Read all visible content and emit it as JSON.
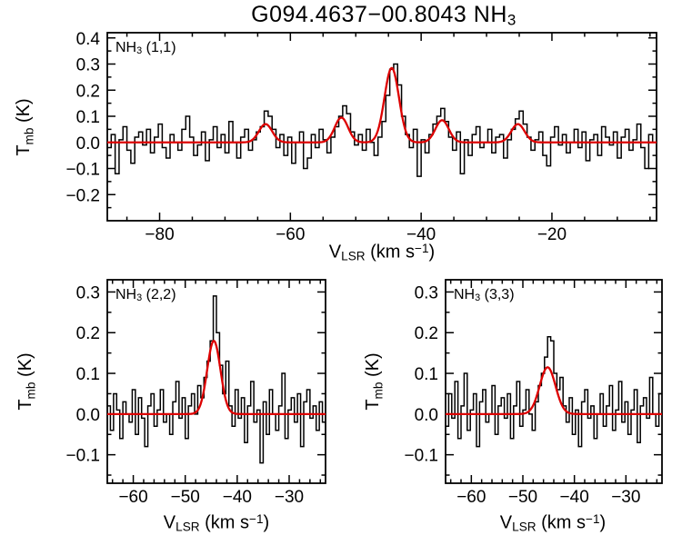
{
  "title": {
    "text": "G094.4637−00.8043 NH",
    "sub": "3"
  },
  "colors": {
    "spectrum": "#000000",
    "fit": "#dd0000",
    "axis": "#000000",
    "background": "#ffffff"
  },
  "labels": {
    "y": {
      "main": "T",
      "sub": "mb",
      "unit": " (K)"
    },
    "x": {
      "main": "V",
      "sub": "LSR",
      "unit_pre": " (km s",
      "sup": "−1",
      "unit_post": ")"
    }
  },
  "chart_data": [
    {
      "type": "line",
      "panel": "top",
      "label": "NH3 (1,1)",
      "label_parts": {
        "main": "NH",
        "sub": "3",
        "rest": " (1,1)"
      },
      "xlabel": "V_LSR (km s^-1)",
      "ylabel": "T_mb (K)",
      "xlim": [
        -88,
        -4
      ],
      "ylim": [
        -0.3,
        0.42
      ],
      "xticks": [
        -80,
        -60,
        -40,
        -20
      ],
      "yticks": [
        0.4,
        0.3,
        0.2,
        0.1,
        0.0,
        -0.1,
        -0.2
      ],
      "x_start": -88,
      "dx": 0.6,
      "spectrum": [
        -0.02,
        0.03,
        -0.12,
        0.01,
        0.06,
        -0.03,
        -0.08,
        0.02,
        0.04,
        -0.01,
        0.05,
        -0.04,
        0.02,
        0.07,
        -0.02,
        -0.06,
        0.03,
        0.0,
        -0.03,
        0.05,
        0.1,
        0.02,
        -0.05,
        -0.01,
        0.04,
        -0.07,
        0.01,
        0.06,
        -0.02,
        0.03,
        -0.04,
        0.08,
        0.0,
        -0.06,
        0.02,
        0.05,
        -0.03,
        0.01,
        0.04,
        0.06,
        0.12,
        0.1,
        0.05,
        -0.02,
        0.03,
        -0.05,
        0.02,
        -0.08,
        0.0,
        0.04,
        -0.1,
        -0.06,
        0.03,
        -0.02,
        0.05,
        0.01,
        -0.04,
        0.02,
        0.06,
        0.1,
        0.14,
        0.11,
        0.04,
        -0.01,
        0.03,
        -0.03,
        0.05,
        0.0,
        -0.05,
        0.02,
        0.08,
        0.18,
        0.28,
        0.3,
        0.22,
        0.1,
        0.03,
        -0.02,
        0.05,
        -0.13,
        0.01,
        -0.04,
        0.03,
        0.07,
        0.1,
        0.13,
        0.08,
        0.02,
        -0.03,
        0.04,
        -0.12,
        0.01,
        -0.05,
        0.03,
        0.06,
        -0.02,
        0.0,
        0.05,
        -0.04,
        0.02,
        0.03,
        -0.06,
        0.01,
        0.05,
        0.09,
        0.12,
        0.07,
        0.02,
        -0.03,
        0.01,
        0.04,
        -0.05,
        -0.09,
        0.02,
        0.06,
        -0.01,
        0.03,
        -0.04,
        0.0,
        0.05,
        -0.02,
        0.04,
        -0.07,
        0.01,
        0.03,
        -0.05,
        0.06,
        0.02,
        -0.01,
        0.04,
        -0.06,
        0.02,
        0.05,
        -0.03,
        0.01,
        0.07,
        -0.02,
        -0.1,
        0.03,
        0.0
      ],
      "fit_components": [
        {
          "center": -63.8,
          "amplitude": 0.07,
          "fwhm": 2.4
        },
        {
          "center": -52.2,
          "amplitude": 0.095,
          "fwhm": 2.4
        },
        {
          "center": -44.5,
          "amplitude": 0.285,
          "fwhm": 2.6
        },
        {
          "center": -36.8,
          "amplitude": 0.085,
          "fwhm": 2.4
        },
        {
          "center": -25.2,
          "amplitude": 0.07,
          "fwhm": 2.4
        }
      ]
    },
    {
      "type": "line",
      "panel": "bottom-left",
      "label": "NH3 (2,2)",
      "label_parts": {
        "main": "NH",
        "sub": "3",
        "rest": " (2,2)"
      },
      "xlabel": "V_LSR (km s^-1)",
      "ylabel": "T_mb (K)",
      "xlim": [
        -65,
        -23
      ],
      "ylim": [
        -0.17,
        0.33
      ],
      "xticks": [
        -60,
        -50,
        -40,
        -30
      ],
      "yticks": [
        0.3,
        0.2,
        0.1,
        0.0,
        -0.1
      ],
      "x_start": -65,
      "dx": 0.6,
      "spectrum": [
        0.02,
        -0.04,
        0.05,
        0.01,
        -0.06,
        0.03,
        0.0,
        -0.02,
        0.06,
        -0.05,
        0.04,
        -0.01,
        -0.08,
        0.02,
        0.05,
        -0.03,
        0.01,
        0.06,
        -0.02,
        0.0,
        -0.05,
        0.03,
        0.08,
        -0.01,
        0.04,
        -0.06,
        0.02,
        0.05,
        0.0,
        0.07,
        0.04,
        0.09,
        0.13,
        0.18,
        0.29,
        0.2,
        0.12,
        0.05,
        0.13,
        0.02,
        -0.03,
        0.06,
        -0.01,
        0.04,
        -0.07,
        0.02,
        0.08,
        -0.02,
        0.01,
        -0.12,
        0.03,
        -0.05,
        0.06,
        0.0,
        -0.04,
        0.02,
        0.1,
        -0.06,
        0.01,
        0.04,
        -0.02,
        0.05,
        -0.08,
        0.03,
        0.06,
        -0.01,
        0.02,
        -0.04,
        0.03,
        -0.02
      ],
      "fit_components": [
        {
          "center": -44.5,
          "amplitude": 0.18,
          "fwhm": 3.0
        }
      ]
    },
    {
      "type": "line",
      "panel": "bottom-right",
      "label": "NH3 (3,3)",
      "label_parts": {
        "main": "NH",
        "sub": "3",
        "rest": " (3,3)"
      },
      "xlabel": "V_LSR (km s^-1)",
      "ylabel": "T_mb (K)",
      "xlim": [
        -65,
        -23
      ],
      "ylim": [
        -0.17,
        0.33
      ],
      "xticks": [
        -60,
        -50,
        -40,
        -30
      ],
      "yticks": [
        0.3,
        0.2,
        0.1,
        0.0,
        -0.1
      ],
      "x_start": -65,
      "dx": 0.6,
      "spectrum": [
        -0.03,
        0.05,
        -0.01,
        0.08,
        -0.06,
        0.02,
        0.1,
        -0.04,
        0.01,
        0.05,
        -0.08,
        0.03,
        0.06,
        -0.02,
        0.0,
        0.07,
        -0.05,
        0.02,
        0.04,
        -0.01,
        0.05,
        -0.06,
        0.02,
        0.08,
        -0.03,
        0.01,
        0.06,
        0.0,
        -0.04,
        0.03,
        0.07,
        0.1,
        0.14,
        0.19,
        0.18,
        0.1,
        0.06,
        0.09,
        0.02,
        -0.02,
        0.04,
        -0.05,
        0.01,
        -0.08,
        0.03,
        0.06,
        -0.01,
        0.02,
        -0.06,
        0.0,
        0.05,
        -0.03,
        0.02,
        0.07,
        -0.04,
        0.01,
        0.08,
        -0.02,
        0.03,
        -0.05,
        0.01,
        0.06,
        -0.07,
        0.02,
        0.04,
        -0.01,
        0.09,
        0.0,
        -0.03,
        0.05
      ],
      "fit_components": [
        {
          "center": -45.2,
          "amplitude": 0.115,
          "fwhm": 3.6
        }
      ]
    }
  ]
}
